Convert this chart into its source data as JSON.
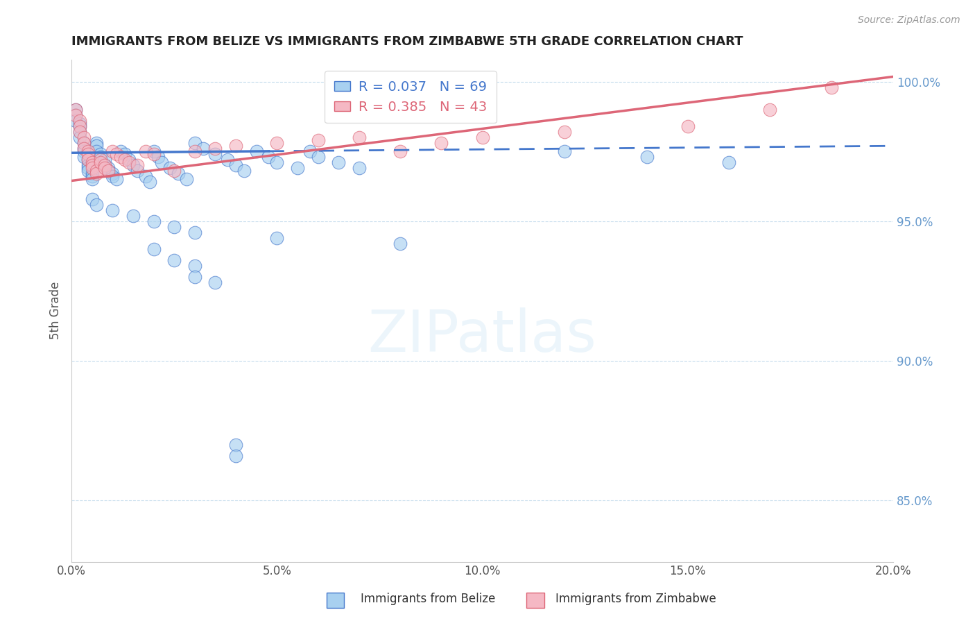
{
  "title": "IMMIGRANTS FROM BELIZE VS IMMIGRANTS FROM ZIMBABWE 5TH GRADE CORRELATION CHART",
  "source": "Source: ZipAtlas.com",
  "ylabel": "5th Grade",
  "legend_labels": [
    "Immigrants from Belize",
    "Immigrants from Zimbabwe"
  ],
  "R_belize": 0.037,
  "N_belize": 69,
  "R_zimbabwe": 0.385,
  "N_zimbabwe": 43,
  "color_belize": "#a8d0f0",
  "color_zimbabwe": "#f5b8c4",
  "trendline_belize_color": "#4477cc",
  "trendline_zimbabwe_color": "#dd6677",
  "xmin": 0.0,
  "xmax": 0.2,
  "ymin": 0.828,
  "ymax": 1.008,
  "yticks": [
    0.85,
    0.9,
    0.95,
    1.0
  ],
  "ytick_labels": [
    "85.0%",
    "90.0%",
    "95.0%",
    "100.0%"
  ],
  "xticks": [
    0.0,
    0.05,
    0.1,
    0.15,
    0.2
  ],
  "xtick_labels": [
    "0.0%",
    "5.0%",
    "10.0%",
    "15.0%",
    "20.0%"
  ],
  "grid_color": "#b8d4e8",
  "background_color": "#ffffff",
  "title_color": "#222222",
  "source_color": "#999999",
  "belize_x": [
    0.001,
    0.001,
    0.001,
    0.002,
    0.002,
    0.002,
    0.002,
    0.003,
    0.003,
    0.003,
    0.003,
    0.004,
    0.004,
    0.004,
    0.004,
    0.005,
    0.005,
    0.005,
    0.006,
    0.006,
    0.006,
    0.007,
    0.007,
    0.008,
    0.008,
    0.009,
    0.009,
    0.01,
    0.01,
    0.011,
    0.012,
    0.013,
    0.014,
    0.015,
    0.016,
    0.018,
    0.019,
    0.02,
    0.021,
    0.022,
    0.024,
    0.026,
    0.028,
    0.03,
    0.032,
    0.035,
    0.038,
    0.04,
    0.042,
    0.045,
    0.048,
    0.05,
    0.055,
    0.058,
    0.06,
    0.065,
    0.07,
    0.12,
    0.14,
    0.16,
    0.005,
    0.006,
    0.01,
    0.015,
    0.02,
    0.025,
    0.03,
    0.05,
    0.08
  ],
  "belize_y": [
    0.99,
    0.988,
    0.986,
    0.985,
    0.984,
    0.982,
    0.98,
    0.978,
    0.976,
    0.975,
    0.973,
    0.972,
    0.97,
    0.969,
    0.968,
    0.967,
    0.966,
    0.965,
    0.978,
    0.977,
    0.975,
    0.974,
    0.973,
    0.972,
    0.97,
    0.969,
    0.968,
    0.967,
    0.966,
    0.965,
    0.975,
    0.974,
    0.972,
    0.97,
    0.968,
    0.966,
    0.964,
    0.975,
    0.973,
    0.971,
    0.969,
    0.967,
    0.965,
    0.978,
    0.976,
    0.974,
    0.972,
    0.97,
    0.968,
    0.975,
    0.973,
    0.971,
    0.969,
    0.975,
    0.973,
    0.971,
    0.969,
    0.975,
    0.973,
    0.971,
    0.958,
    0.956,
    0.954,
    0.952,
    0.95,
    0.948,
    0.946,
    0.944,
    0.942
  ],
  "belize_y_outliers_x": [
    0.02,
    0.025,
    0.03,
    0.03,
    0.035,
    0.04,
    0.04
  ],
  "belize_y_outliers_y": [
    0.94,
    0.936,
    0.934,
    0.93,
    0.928,
    0.87,
    0.866
  ],
  "zimbabwe_x": [
    0.001,
    0.001,
    0.002,
    0.002,
    0.002,
    0.003,
    0.003,
    0.003,
    0.004,
    0.004,
    0.004,
    0.005,
    0.005,
    0.005,
    0.006,
    0.006,
    0.007,
    0.007,
    0.008,
    0.008,
    0.009,
    0.01,
    0.011,
    0.012,
    0.013,
    0.014,
    0.016,
    0.018,
    0.02,
    0.025,
    0.03,
    0.035,
    0.04,
    0.05,
    0.06,
    0.07,
    0.08,
    0.09,
    0.1,
    0.12,
    0.15,
    0.17,
    0.185
  ],
  "zimbabwe_y": [
    0.99,
    0.988,
    0.986,
    0.984,
    0.982,
    0.98,
    0.978,
    0.976,
    0.975,
    0.974,
    0.972,
    0.971,
    0.97,
    0.969,
    0.968,
    0.967,
    0.972,
    0.971,
    0.97,
    0.969,
    0.968,
    0.975,
    0.974,
    0.973,
    0.972,
    0.971,
    0.97,
    0.975,
    0.974,
    0.968,
    0.975,
    0.976,
    0.977,
    0.978,
    0.979,
    0.98,
    0.975,
    0.978,
    0.98,
    0.982,
    0.984,
    0.99,
    0.998
  ]
}
